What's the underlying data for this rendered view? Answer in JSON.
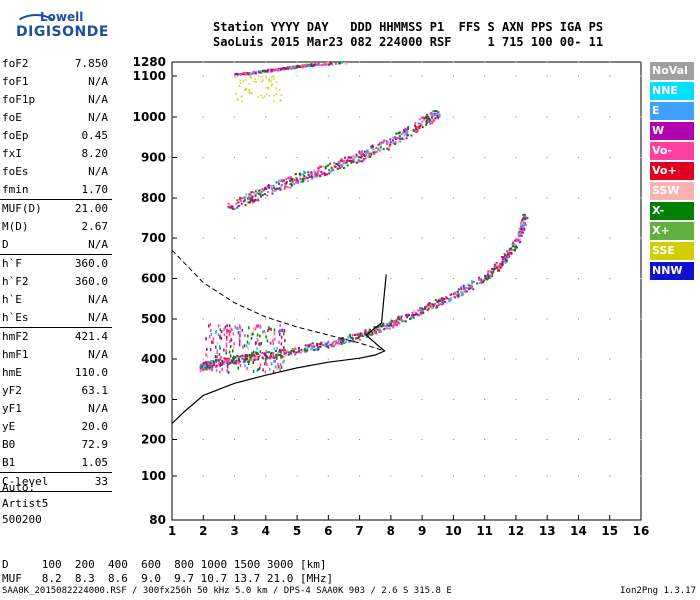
{
  "logo": {
    "line1": "Lowell",
    "line2": "DIGISONDE"
  },
  "header": {
    "line1": "Station YYYY DAY   DDD HHMMSS P1  FFS S AXN PPS IGA PS",
    "line2": "SaoLuis 2015 Mar23 082 224000 RSF     1 715 100 00- 11"
  },
  "params": [
    {
      "label": "foF2",
      "value": "7.850"
    },
    {
      "label": "foF1",
      "value": "N/A"
    },
    {
      "label": "foF1p",
      "value": "N/A"
    },
    {
      "label": "foE",
      "value": "N/A"
    },
    {
      "label": "foEp",
      "value": "0.45"
    },
    {
      "label": "fxI",
      "value": "8.20"
    },
    {
      "label": "foEs",
      "value": "N/A"
    },
    {
      "label": "fmin",
      "value": "1.70",
      "sep": true
    },
    {
      "label": "MUF(D)",
      "value": "21.00"
    },
    {
      "label": "M(D)",
      "value": "2.67"
    },
    {
      "label": "D",
      "value": "N/A",
      "sep": true
    },
    {
      "label": "h`F",
      "value": "360.0"
    },
    {
      "label": "h`F2",
      "value": "360.0"
    },
    {
      "label": "h`E",
      "value": "N/A"
    },
    {
      "label": "h`Es",
      "value": "N/A",
      "sep": true
    },
    {
      "label": "hmF2",
      "value": "421.4"
    },
    {
      "label": "hmF1",
      "value": "N/A"
    },
    {
      "label": "hmE",
      "value": "110.0"
    },
    {
      "label": "yF2",
      "value": "63.1"
    },
    {
      "label": "yF1",
      "value": "N/A"
    },
    {
      "label": "yE",
      "value": "20.0"
    },
    {
      "label": "B0",
      "value": "72.9"
    },
    {
      "label": "B1",
      "value": "1.05",
      "sep": true
    },
    {
      "label": "C-level",
      "value": "33",
      "sep": true
    }
  ],
  "auto": {
    "l1": "Auto:",
    "l2": "Artist5",
    "l3": "500200"
  },
  "dtable": {
    "d_row": "D     100  200  400  600  800 1000 1500 3000 [km]",
    "muf_row": "MUF   8.2  8.3  8.6  9.0  9.7 10.7 13.7 21.0 [MHz]"
  },
  "footer": "SAA0K_2015082224000.RSF / 300fx256h 50 kHz 5.0 km / DPS-4 SAA0K 903 / 2.6 S 315.8 E",
  "version": "Ion2Png 1.3.17",
  "legend": [
    {
      "label": "NoVal",
      "color": "#a0a0a0"
    },
    {
      "label": "NNE",
      "color": "#00e0ff"
    },
    {
      "label": "E",
      "color": "#40a0ff"
    },
    {
      "label": "W",
      "color": "#b000b0"
    },
    {
      "label": "Vo-",
      "color": "#ff40a0"
    },
    {
      "label": "Vo+",
      "color": "#e00020"
    },
    {
      "label": "SSW",
      "color": "#ffb0b0"
    },
    {
      "label": "X-",
      "color": "#008000"
    },
    {
      "label": "X+",
      "color": "#60b040"
    },
    {
      "label": "SSE",
      "color": "#d0d000"
    },
    {
      "label": "NNW",
      "color": "#1010d0"
    }
  ],
  "chart_data": {
    "type": "scatter",
    "xlabel": "",
    "ylabel": "",
    "xlim": [
      1,
      16
    ],
    "ylim": [
      80,
      1280
    ],
    "x_ticks": [
      "1",
      "2",
      "3",
      "4",
      "5",
      "6",
      "7",
      "8",
      "9",
      "10",
      "11",
      "12",
      "13",
      "14",
      "15",
      "16"
    ],
    "y_ticks": [
      "80",
      "100",
      "200",
      "300",
      "400",
      "500",
      "600",
      "700",
      "800",
      "900",
      "1000",
      "1100",
      "1280"
    ],
    "y_tick_values": [
      80,
      100,
      200,
      300,
      400,
      500,
      600,
      700,
      800,
      900,
      1000,
      1100,
      1280
    ],
    "grid": true,
    "traces": [
      {
        "name": "o-trace first hop",
        "points": [
          [
            1.9,
            380
          ],
          [
            2.2,
            390
          ],
          [
            3,
            400
          ],
          [
            4,
            410
          ],
          [
            5,
            425
          ],
          [
            6,
            440
          ],
          [
            7,
            460
          ],
          [
            8,
            490
          ],
          [
            9,
            525
          ],
          [
            10,
            560
          ],
          [
            11,
            605
          ],
          [
            11.5,
            640
          ],
          [
            12,
            690
          ],
          [
            12.3,
            760
          ]
        ]
      },
      {
        "name": "second hop",
        "points": [
          [
            2.8,
            780
          ],
          [
            4,
            820
          ],
          [
            5,
            850
          ],
          [
            6,
            875
          ],
          [
            7,
            905
          ],
          [
            8,
            940
          ],
          [
            9,
            990
          ],
          [
            9.5,
            1010
          ]
        ]
      },
      {
        "name": "third hop",
        "points": [
          [
            3,
            1130
          ],
          [
            3.5,
            1150
          ],
          [
            4,
            1175
          ],
          [
            4.5,
            1205
          ],
          [
            5,
            1230
          ],
          [
            5.5,
            1255
          ],
          [
            6.5,
            1280
          ]
        ]
      }
    ],
    "profile": {
      "name": "electron density profile",
      "points": [
        [
          1,
          240
        ],
        [
          1.4,
          270
        ],
        [
          2,
          310
        ],
        [
          3,
          340
        ],
        [
          4,
          360
        ],
        [
          5,
          378
        ],
        [
          6,
          392
        ],
        [
          7,
          402
        ],
        [
          7.5,
          410
        ],
        [
          7.8,
          420
        ],
        [
          7.5,
          440
        ],
        [
          7.2,
          460
        ],
        [
          7.7,
          490
        ],
        [
          7.85,
          610
        ]
      ]
    },
    "dashed": {
      "name": "extrapolated profile",
      "points": [
        [
          1,
          670
        ],
        [
          2,
          590
        ],
        [
          3,
          540
        ],
        [
          4,
          505
        ],
        [
          5,
          480
        ],
        [
          6,
          460
        ],
        [
          7,
          440
        ],
        [
          7.8,
          420
        ]
      ]
    }
  }
}
